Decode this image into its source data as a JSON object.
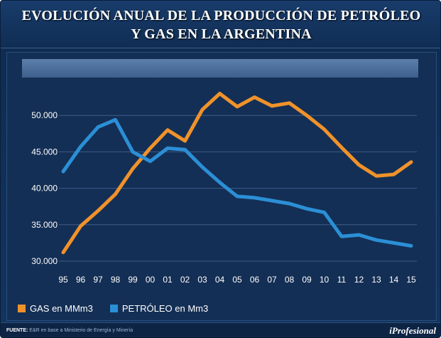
{
  "header": {
    "title_line1": "EVOLUCIÓN ANUAL DE LA PRODUCCIÓN DE PETRÓLEO",
    "title_line2": "Y GAS EN LA ARGENTINA"
  },
  "footer": {
    "source_label": "FUENTE:",
    "source_text": "E&R en base a Ministerio de Energía y Minería",
    "brand": "iProfesional"
  },
  "colors": {
    "gas": "#f0922b",
    "petroleo": "#2b8fd6"
  },
  "chart_data": {
    "type": "line",
    "title": "EVOLUCIÓN ANUAL DE LA PRODUCCIÓN DE PETRÓLEO Y GAS EN LA ARGENTINA",
    "xlabel": "",
    "ylabel": "",
    "categories": [
      "95",
      "96",
      "97",
      "98",
      "99",
      "00",
      "01",
      "02",
      "03",
      "04",
      "05",
      "06",
      "07",
      "08",
      "09",
      "10",
      "11",
      "12",
      "13",
      "14",
      "15"
    ],
    "ylim": [
      30000,
      55000
    ],
    "yticks": [
      30000,
      35000,
      40000,
      45000,
      50000
    ],
    "ytick_labels": [
      "30.000",
      "35.000",
      "40.000",
      "45.000",
      "50.000"
    ],
    "grid": true,
    "legend_position": "bottom-left",
    "series": [
      {
        "name": "GAS en MMm3",
        "color": "#f0922b",
        "values": [
          31200,
          34800,
          36900,
          39200,
          42700,
          45500,
          48000,
          46500,
          50800,
          53000,
          51200,
          52500,
          51300,
          51700,
          50000,
          48100,
          45600,
          43200,
          41700,
          41900,
          43600
        ]
      },
      {
        "name": "PETRÓLEO en Mm3",
        "color": "#2b8fd6",
        "values": [
          42300,
          45700,
          48400,
          49400,
          45000,
          43700,
          45500,
          45300,
          42900,
          40800,
          38900,
          38700,
          38300,
          37900,
          37200,
          36700,
          33400,
          33600,
          32900,
          32500,
          32100
        ]
      }
    ]
  }
}
